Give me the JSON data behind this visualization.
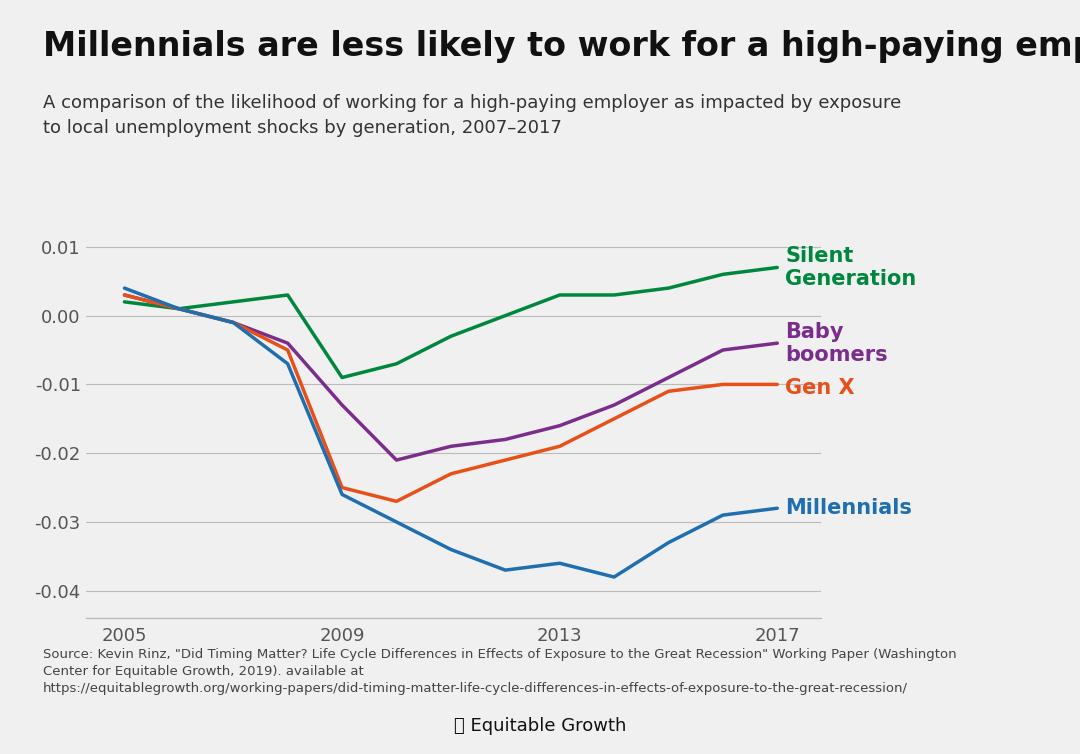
{
  "title": "Millennials are less likely to work for a high-paying employer",
  "subtitle": "A comparison of the likelihood of working for a high-paying employer as impacted by exposure\nto local unemployment shocks by generation, 2007–2017",
  "source_text": "Source: Kevin Rinz, \"Did Timing Matter? Life Cycle Differences in Effects of Exposure to the Great Recession\" Working Paper (Washington\nCenter for Equitable Growth, 2019). available at\nhttps://equitablegrowth.org/working-papers/did-timing-matter-life-cycle-differences-in-effects-of-exposure-to-the-great-recession/",
  "background_color": "#f0f0f0",
  "plot_background_color": "#f0f0f0",
  "series": {
    "Silent Generation": {
      "color": "#00873e",
      "x": [
        2005,
        2006,
        2007,
        2008,
        2009,
        2010,
        2011,
        2012,
        2013,
        2014,
        2015,
        2016,
        2017
      ],
      "y": [
        0.002,
        0.001,
        0.002,
        0.003,
        -0.009,
        -0.007,
        -0.003,
        0.0,
        0.003,
        0.003,
        0.004,
        0.006,
        0.007
      ]
    },
    "Baby boomers": {
      "color": "#7b2d8b",
      "x": [
        2005,
        2006,
        2007,
        2008,
        2009,
        2010,
        2011,
        2012,
        2013,
        2014,
        2015,
        2016,
        2017
      ],
      "y": [
        0.003,
        0.001,
        -0.001,
        -0.004,
        -0.013,
        -0.021,
        -0.019,
        -0.018,
        -0.016,
        -0.013,
        -0.009,
        -0.005,
        -0.004
      ]
    },
    "Gen X": {
      "color": "#e8501a",
      "x": [
        2005,
        2006,
        2007,
        2008,
        2009,
        2010,
        2011,
        2012,
        2013,
        2014,
        2015,
        2016,
        2017
      ],
      "y": [
        0.003,
        0.001,
        -0.001,
        -0.005,
        -0.025,
        -0.027,
        -0.023,
        -0.021,
        -0.019,
        -0.015,
        -0.011,
        -0.01,
        -0.01
      ]
    },
    "Millennials": {
      "color": "#1f6fb0",
      "x": [
        2005,
        2006,
        2007,
        2008,
        2009,
        2010,
        2011,
        2012,
        2013,
        2014,
        2015,
        2016,
        2017
      ],
      "y": [
        0.004,
        0.001,
        -0.001,
        -0.007,
        -0.026,
        -0.03,
        -0.034,
        -0.037,
        -0.036,
        -0.038,
        -0.033,
        -0.029,
        -0.028
      ]
    }
  },
  "xlim": [
    2004.3,
    2017.8
  ],
  "ylim": [
    -0.044,
    0.013
  ],
  "yticks": [
    0.01,
    0.0,
    -0.01,
    -0.02,
    -0.03,
    -0.04
  ],
  "ytick_labels": [
    "0.01",
    "0.00",
    "-0.01",
    "-0.02",
    "-0.03",
    "-0.04"
  ],
  "xticks": [
    2005,
    2009,
    2013,
    2017
  ],
  "line_width": 2.5,
  "title_fontsize": 24,
  "subtitle_fontsize": 13,
  "tick_fontsize": 13,
  "label_fontsize": 15,
  "source_fontsize": 9.5,
  "label_positions": {
    "Silent Generation": [
      2017.15,
      0.007,
      "Silent\nGeneration"
    ],
    "Baby boomers": [
      2017.15,
      -0.004,
      "Baby\nboomers"
    ],
    "Gen X": [
      2017.15,
      -0.0105,
      "Gen X"
    ],
    "Millennials": [
      2017.15,
      -0.028,
      "Millennials"
    ]
  }
}
